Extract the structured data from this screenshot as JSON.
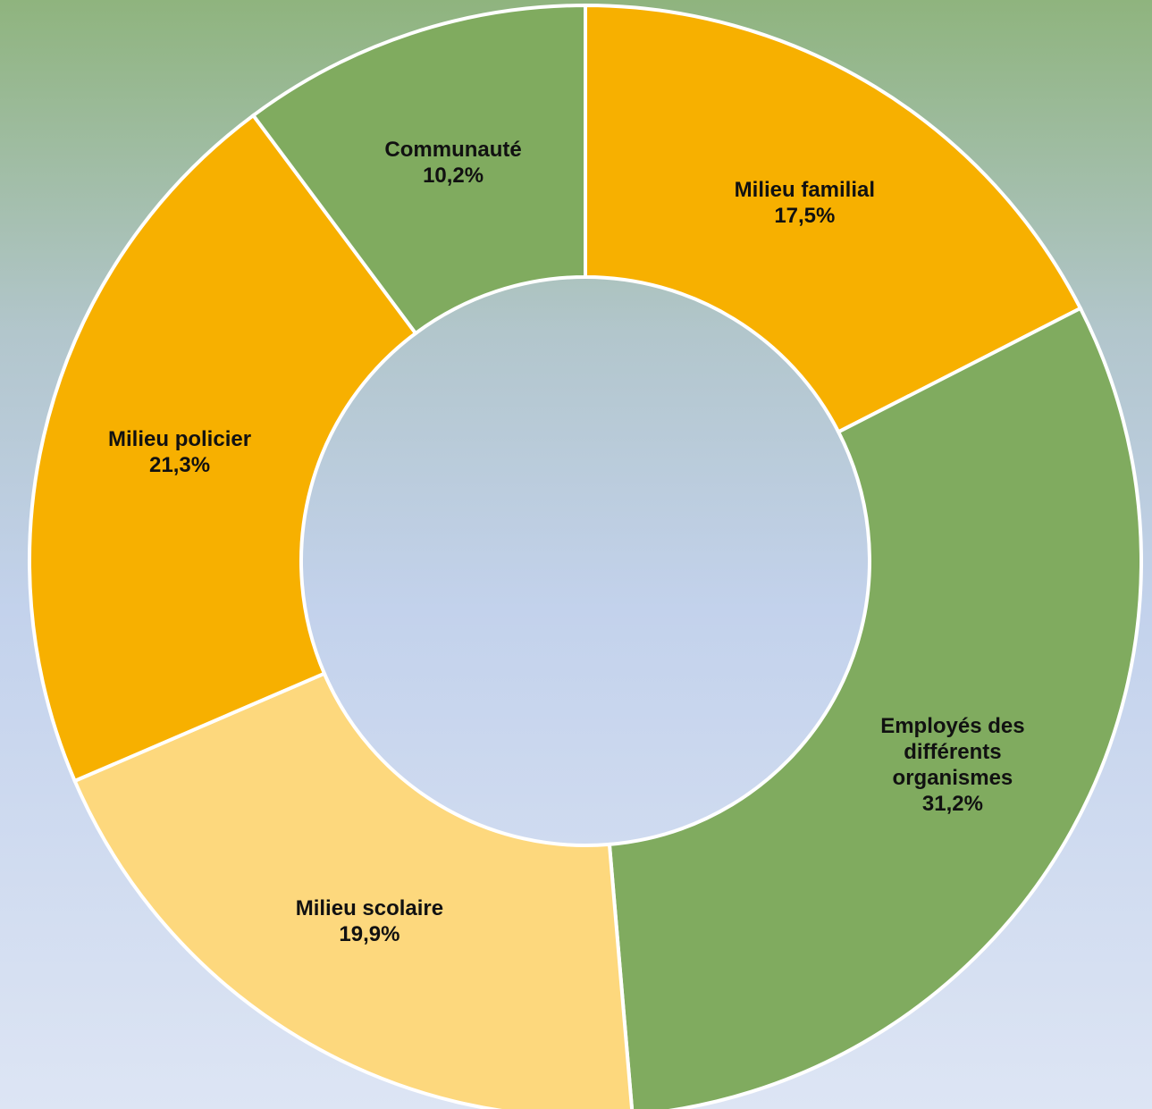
{
  "chart_data": {
    "type": "donut",
    "categories": [
      "Milieu familial",
      "Employés des différents organismes",
      "Milieu scolaire",
      "Milieu policier",
      "Communauté"
    ],
    "values": [
      17.5,
      31.2,
      19.9,
      21.3,
      10.2
    ],
    "value_labels": [
      "17,5%",
      "31,2%",
      "19,9%",
      "21,3%",
      "10,2%"
    ],
    "colors": [
      "#f7b000",
      "#80ab5f",
      "#fdd87d",
      "#f7b000",
      "#80ab5f"
    ]
  }
}
